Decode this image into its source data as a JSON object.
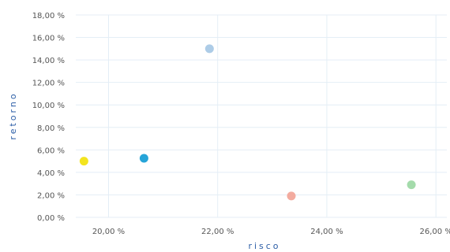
{
  "chart_data": {
    "type": "scatter",
    "xlabel": "risco",
    "ylabel": "retorno",
    "xlim": [
      19.4,
      26.2
    ],
    "ylim": [
      0,
      18
    ],
    "x_ticks": [
      "20,00 %",
      "22,00 %",
      "24,00 %",
      "26,00 %"
    ],
    "y_ticks": [
      "0,00 %",
      "2,00 %",
      "4,00 %",
      "6,00 %",
      "8,00 %",
      "10,00 %",
      "12,00 %",
      "14,00 %",
      "16,00 %",
      "18,00 %"
    ],
    "grid": true,
    "points": [
      {
        "x": 19.55,
        "y": 5.0,
        "color": "#f2e313"
      },
      {
        "x": 20.65,
        "y": 5.25,
        "color": "#1a9fd6"
      },
      {
        "x": 21.85,
        "y": 15.0,
        "color": "#a9c9e6"
      },
      {
        "x": 23.35,
        "y": 1.9,
        "color": "#f2a69a"
      },
      {
        "x": 25.55,
        "y": 2.9,
        "color": "#9fd9a6"
      }
    ]
  }
}
